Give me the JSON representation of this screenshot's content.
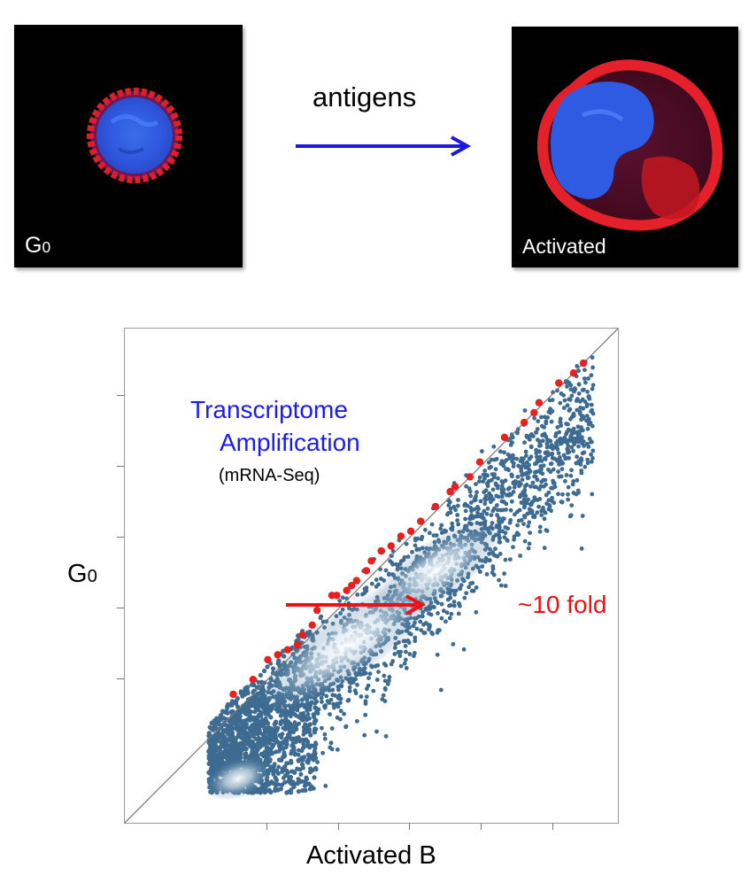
{
  "top_row": {
    "left_panel": {
      "label_main": "G",
      "label_sub": "0"
    },
    "right_panel": {
      "label": "Activated"
    },
    "arrow_label": "antigens"
  },
  "chart_data": {
    "type": "scatter",
    "title": "",
    "xlabel": "Activated B",
    "ylabel_main": "G",
    "ylabel_sub": "0",
    "annotations": {
      "title_line1": "Transcriptome",
      "title_line2": "Amplification",
      "subtitle": "(mRNA-Seq)",
      "fold": "~10 fold"
    },
    "x_ticks": 4,
    "y_ticks": 4,
    "diagonal_line": true,
    "colors": {
      "background_points": "#3d6b91",
      "highlight_points": "#e8201e",
      "arrow": "#ee1111",
      "title": "#1a1aff"
    },
    "highlight_points": [
      [
        0.22,
        0.26
      ],
      [
        0.26,
        0.29
      ],
      [
        0.29,
        0.33
      ],
      [
        0.31,
        0.34
      ],
      [
        0.33,
        0.35
      ],
      [
        0.35,
        0.36
      ],
      [
        0.36,
        0.38
      ],
      [
        0.38,
        0.4
      ],
      [
        0.39,
        0.43
      ],
      [
        0.42,
        0.46
      ],
      [
        0.43,
        0.46
      ],
      [
        0.45,
        0.47
      ],
      [
        0.46,
        0.48
      ],
      [
        0.47,
        0.49
      ],
      [
        0.49,
        0.51
      ],
      [
        0.5,
        0.53
      ],
      [
        0.52,
        0.55
      ],
      [
        0.54,
        0.56
      ],
      [
        0.56,
        0.58
      ],
      [
        0.58,
        0.59
      ],
      [
        0.6,
        0.61
      ],
      [
        0.63,
        0.64
      ],
      [
        0.66,
        0.67
      ],
      [
        0.67,
        0.68
      ],
      [
        0.7,
        0.7
      ],
      [
        0.72,
        0.73
      ],
      [
        0.77,
        0.78
      ],
      [
        0.81,
        0.81
      ],
      [
        0.83,
        0.83
      ],
      [
        0.84,
        0.85
      ],
      [
        0.88,
        0.89
      ],
      [
        0.91,
        0.91
      ],
      [
        0.93,
        0.93
      ]
    ]
  }
}
